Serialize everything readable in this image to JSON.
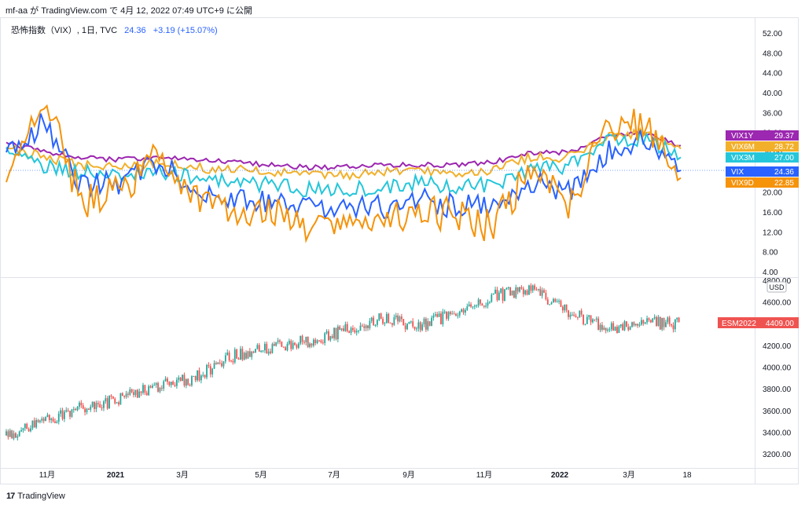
{
  "header": {
    "publisher_line": "mf-aa が TradingView.com で 4月 12, 2022 07:49 UTC+9 に公開"
  },
  "legend": {
    "symbol": "恐怖指数（VIX）, 1日, TVC",
    "value": "24.36",
    "change": "+3.19 (+15.07%)"
  },
  "footer": {
    "logo": "17",
    "brand": "TradingView"
  },
  "colors": {
    "VIX1Y": "#9c27b0",
    "VIX6M": "#f2b02a",
    "VIX3M": "#26c6da",
    "VIX": "#2962ff",
    "VIX9D": "#f5930b",
    "ES_up": "#26a69a",
    "ES_down": "#ef5350",
    "ESM2022": "#ef5350"
  },
  "chart_data": [
    {
      "type": "line",
      "panel": "top",
      "y_axis_ticks": [
        "52.00",
        "48.00",
        "44.00",
        "40.00",
        "36.00",
        "32.00",
        "28.00",
        "24.00",
        "20.00",
        "16.00",
        "12.00",
        "8.00",
        "4.00"
      ],
      "ylim": [
        4,
        52
      ],
      "x_axis_ticks": [
        "11月",
        "2021",
        "3月",
        "5月",
        "7月",
        "9月",
        "11月",
        "2022",
        "3月",
        "18"
      ],
      "x": [
        "2020-10",
        "2020-11",
        "2020-12",
        "2021-01",
        "2021-02",
        "2021-03",
        "2021-04",
        "2021-05",
        "2021-06",
        "2021-07",
        "2021-08",
        "2021-09",
        "2021-10",
        "2021-11",
        "2021-12",
        "2022-01",
        "2022-02",
        "2022-03",
        "2022-04"
      ],
      "series": [
        {
          "name": "VIX1Y",
          "last_label": "29.37",
          "values": [
            30,
            28,
            27,
            26.5,
            27,
            26.5,
            26,
            25.5,
            25,
            25,
            25.5,
            25.5,
            25.5,
            26,
            28,
            28,
            31,
            32,
            29.37
          ]
        },
        {
          "name": "VIX6M",
          "last_label": "28.72",
          "values": [
            29,
            27,
            25.5,
            25,
            26,
            25,
            24.5,
            24,
            23.5,
            23.5,
            24,
            24,
            24,
            24.5,
            27,
            27,
            31,
            32,
            28.72
          ]
        },
        {
          "name": "VIX3M",
          "last_label": "27.00",
          "values": [
            29,
            25,
            24,
            23,
            24,
            23,
            22,
            21.5,
            20.5,
            20.5,
            21,
            22,
            21,
            21.5,
            25,
            25,
            30,
            31,
            27.0
          ]
        },
        {
          "name": "VIX",
          "last_label": "24.36",
          "values": [
            28,
            34,
            21,
            22,
            26,
            21,
            18,
            18.5,
            16.5,
            17,
            17,
            19,
            17,
            17.5,
            22,
            20,
            28,
            31,
            24.36
          ]
        },
        {
          "name": "VIX9D",
          "last_label": "22.85",
          "values": [
            22,
            40,
            18,
            20,
            27,
            20,
            15,
            16,
            13,
            14,
            13,
            17,
            15,
            13,
            25,
            17,
            33,
            34,
            22.85
          ]
        }
      ]
    },
    {
      "type": "candlestick",
      "panel": "bottom",
      "series_name": "ESM2022",
      "last_label": "4409.00",
      "unit_label": "USD",
      "y_axis_ticks": [
        "4800.00",
        "4600.00",
        "4400.00",
        "4200.00",
        "4000.00",
        "3800.00",
        "3600.00",
        "3400.00",
        "3200.00"
      ],
      "ylim": [
        3100,
        4800
      ],
      "x": [
        "2020-10",
        "2020-11",
        "2020-12",
        "2021-01",
        "2021-02",
        "2021-03",
        "2021-04",
        "2021-05",
        "2021-06",
        "2021-07",
        "2021-08",
        "2021-09",
        "2021-10",
        "2021-11",
        "2021-12",
        "2022-01",
        "2022-02",
        "2022-03",
        "2022-04"
      ],
      "close": [
        3370,
        3500,
        3620,
        3700,
        3820,
        3900,
        4100,
        4180,
        4240,
        4330,
        4450,
        4380,
        4500,
        4650,
        4730,
        4520,
        4350,
        4400,
        4409
      ]
    }
  ]
}
